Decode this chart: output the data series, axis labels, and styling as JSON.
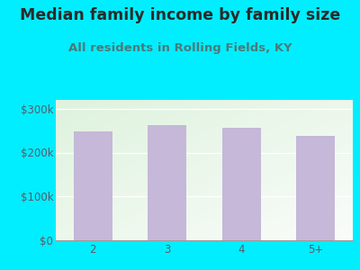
{
  "title": "Median family income by family size",
  "subtitle": "All residents in Rolling Fields, KY",
  "categories": [
    "2",
    "3",
    "4",
    "5+"
  ],
  "values": [
    248000,
    262000,
    257000,
    238000
  ],
  "bar_color": "#c5b8d8",
  "background_outer": "#00eeff",
  "title_color": "#2a2a2a",
  "subtitle_color": "#4a7a7a",
  "tick_label_color": "#5a5a6a",
  "ytick_labels": [
    "$0",
    "$100k",
    "$200k",
    "$300k"
  ],
  "ytick_values": [
    0,
    100000,
    200000,
    300000
  ],
  "ylim": [
    0,
    320000
  ],
  "title_fontsize": 12.5,
  "subtitle_fontsize": 9.5,
  "tick_fontsize": 8.5
}
